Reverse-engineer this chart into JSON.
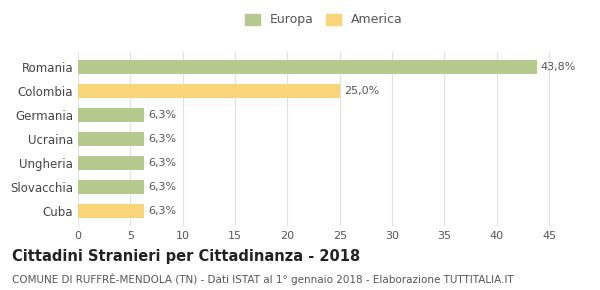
{
  "categories": [
    "Romania",
    "Colombia",
    "Germania",
    "Ucraina",
    "Ungheria",
    "Slovacchia",
    "Cuba"
  ],
  "values": [
    43.8,
    25.0,
    6.3,
    6.3,
    6.3,
    6.3,
    6.3
  ],
  "colors": [
    "#b5c98e",
    "#f9d57a",
    "#b5c98e",
    "#b5c98e",
    "#b5c98e",
    "#b5c98e",
    "#f9d57a"
  ],
  "labels": [
    "43,8%",
    "25,0%",
    "6,3%",
    "6,3%",
    "6,3%",
    "6,3%",
    "6,3%"
  ],
  "legend_labels": [
    "Europa",
    "America"
  ],
  "legend_colors": [
    "#b5c98e",
    "#f9d57a"
  ],
  "title": "Cittadini Stranieri per Cittadinanza - 2018",
  "subtitle": "COMUNE DI RUFFRÈ-MENDOLA (TN) - Dati ISTAT al 1° gennaio 2018 - Elaborazione TUTTITALIA.IT",
  "xlim": [
    0,
    47
  ],
  "xticks": [
    0,
    5,
    10,
    15,
    20,
    25,
    30,
    35,
    40,
    45
  ],
  "background_color": "#ffffff",
  "grid_color": "#e0e0e0",
  "bar_label_fontsize": 8.0,
  "title_fontsize": 10.5,
  "subtitle_fontsize": 7.5,
  "ytick_fontsize": 8.5,
  "xtick_fontsize": 8.0
}
